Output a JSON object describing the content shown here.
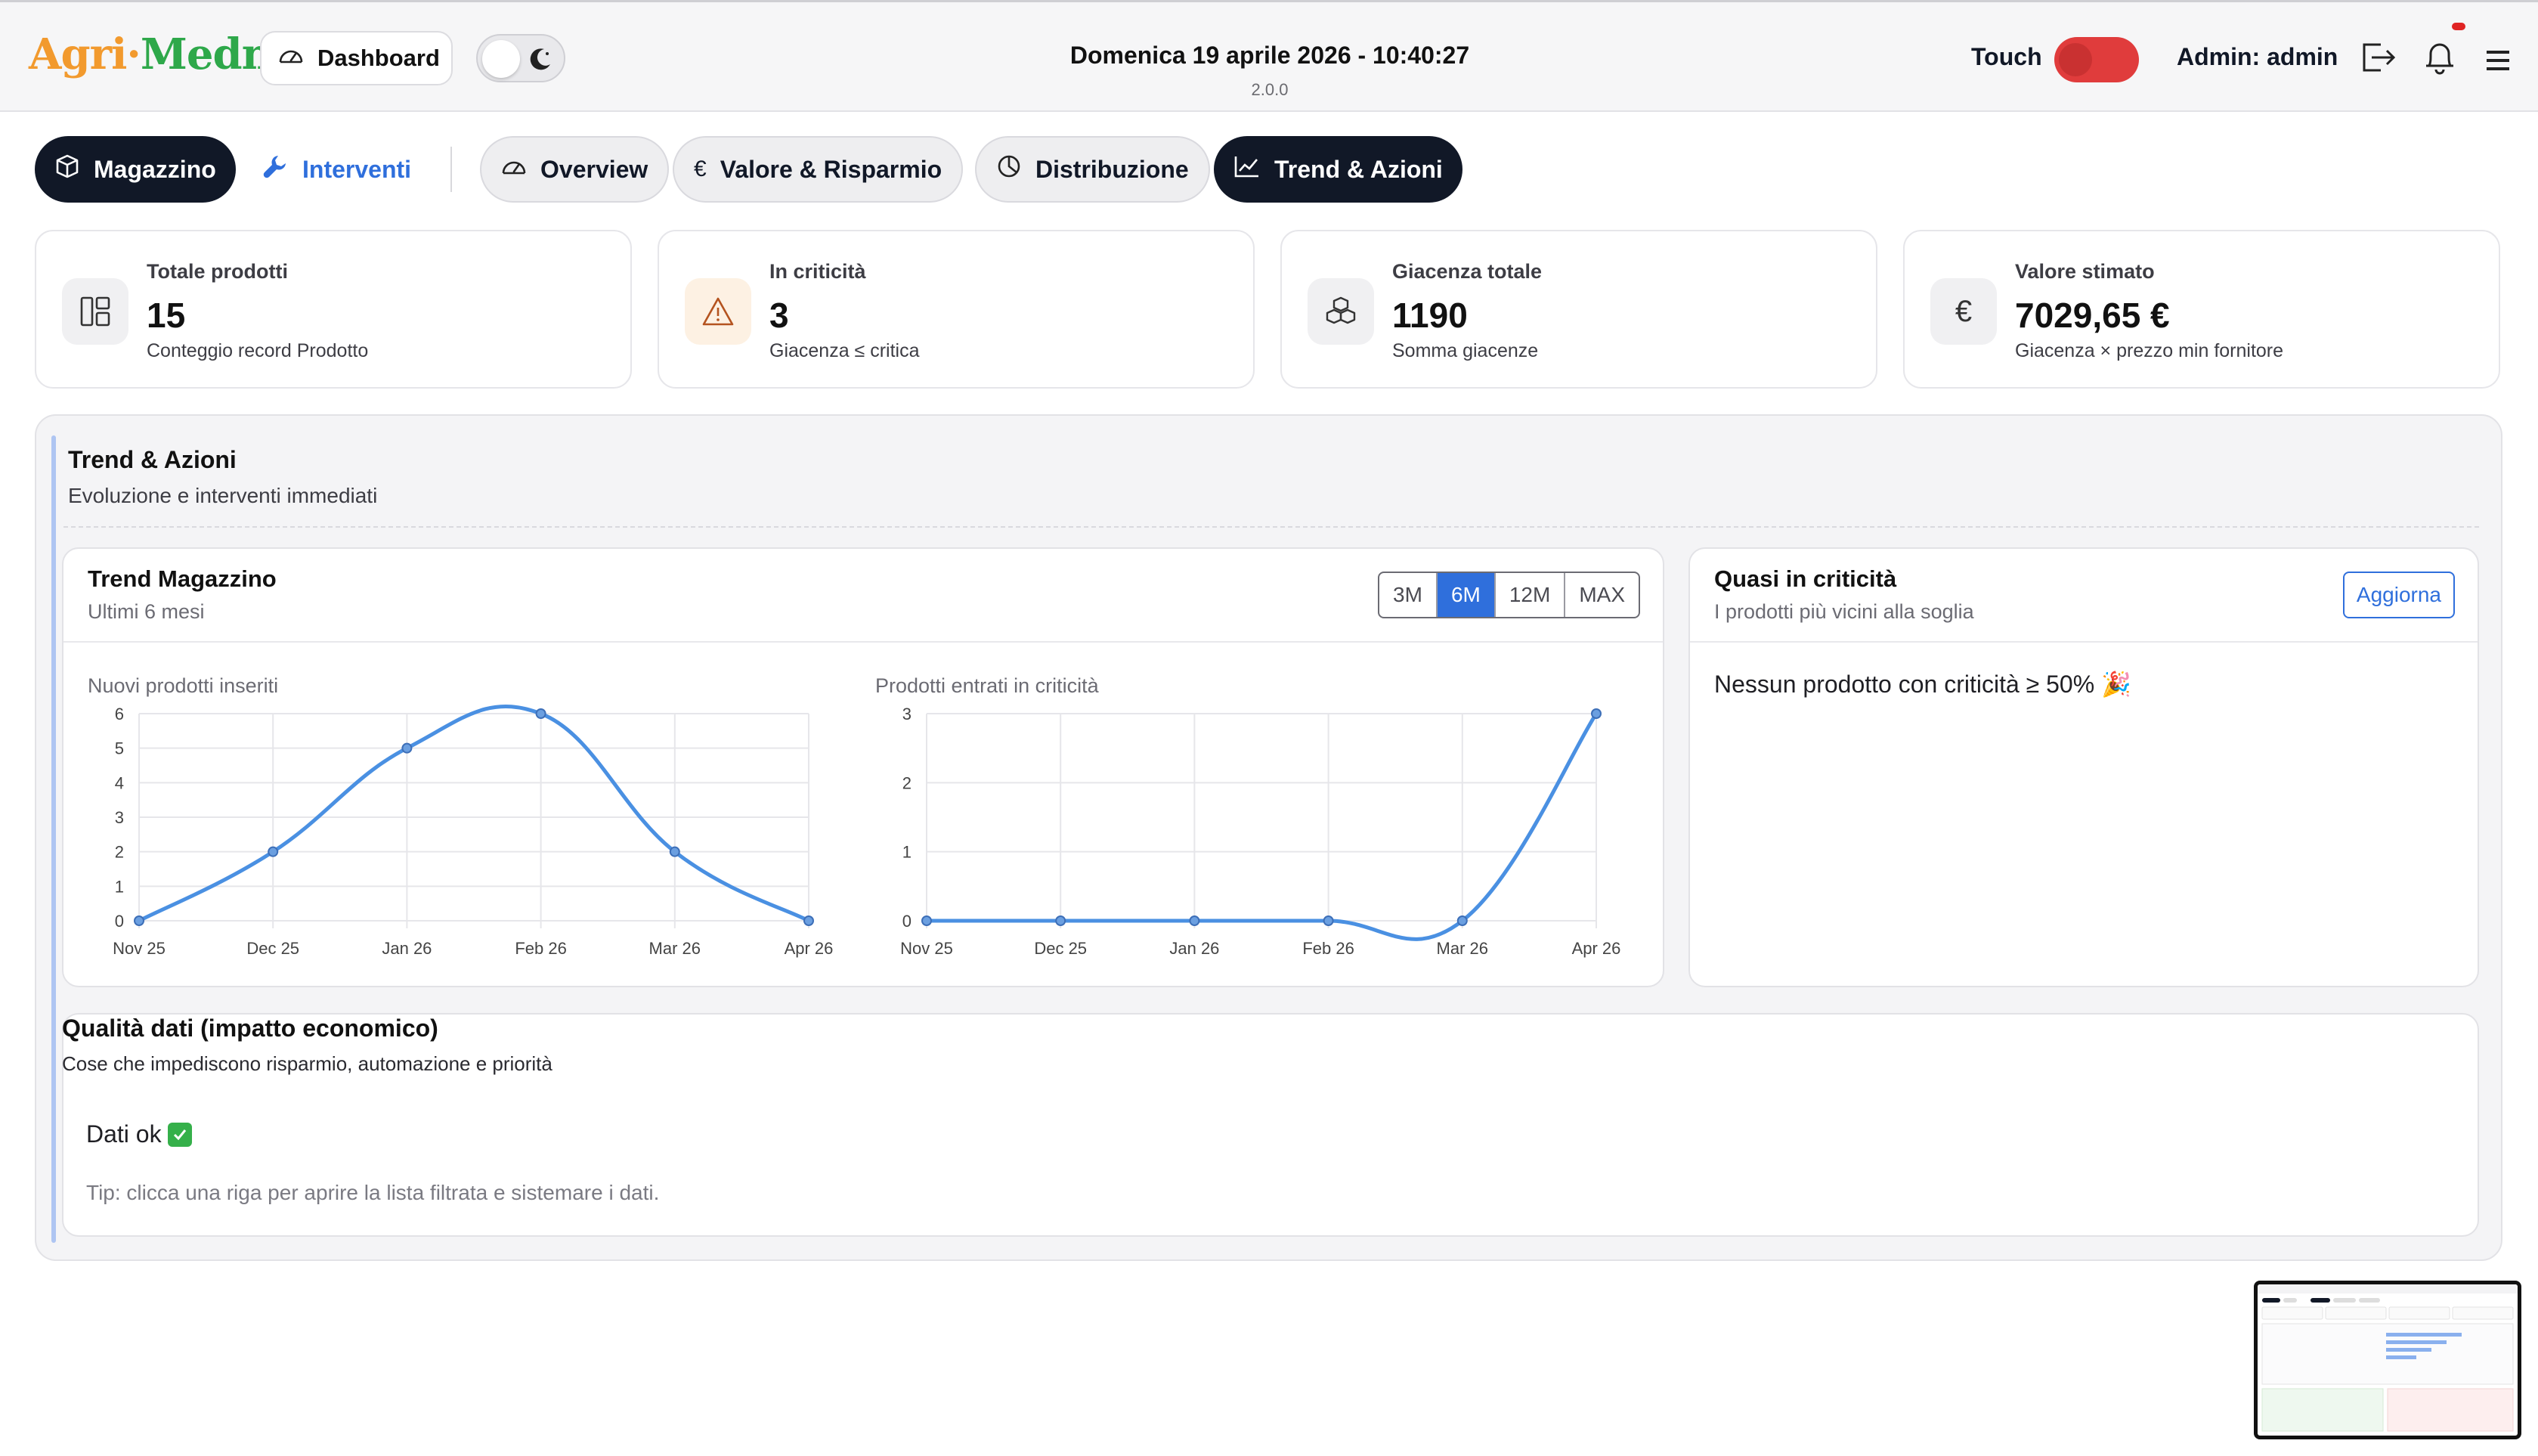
{
  "header": {
    "logo_part1": "Agri·",
    "logo_part2": "Medma",
    "dashboard_label": "Dashboard",
    "datetime": "Domenica 19 aprile 2026 - 10:40:27",
    "version": "2.0.0",
    "touch_label": "Touch",
    "admin_label": "Admin: admin",
    "colors": {
      "logo_orange": "#f29a2e",
      "logo_green": "#2ea84a",
      "touch_on": "#e03c3c"
    }
  },
  "tabs": {
    "magazzino": "Magazzino",
    "interventi": "Interventi",
    "overview": "Overview",
    "valore": "Valore & Risparmio",
    "distribuzione": "Distribuzione",
    "trend": "Trend & Azioni",
    "active": "Trend & Azioni"
  },
  "kpis": [
    {
      "label": "Totale prodotti",
      "value": "15",
      "sub": "Conteggio record Prodotto",
      "icon": "layout-icon"
    },
    {
      "label": "In criticità",
      "value": "3",
      "sub": "Giacenza ≤ critica",
      "icon": "warning-icon"
    },
    {
      "label": "Giacenza totale",
      "value": "1190",
      "sub": "Somma giacenze",
      "icon": "boxes-icon"
    },
    {
      "label": "Valore stimato",
      "value": "7029,65 €",
      "sub": "Giacenza × prezzo min fornitore",
      "icon": "euro-icon"
    }
  ],
  "section": {
    "title": "Trend & Azioni",
    "subtitle": "Evoluzione e interventi immediati"
  },
  "trend_card": {
    "title": "Trend Magazzino",
    "subtitle": "Ultimi 6 mesi",
    "ranges": [
      "3M",
      "6M",
      "12M",
      "MAX"
    ],
    "active_range": "6M"
  },
  "chart_data": [
    {
      "type": "line",
      "title": "Nuovi prodotti inseriti",
      "categories": [
        "Nov 25",
        "Dec 25",
        "Jan 26",
        "Feb 26",
        "Mar 26",
        "Apr 26"
      ],
      "values": [
        0,
        2,
        5,
        6,
        2,
        0
      ],
      "ylim": [
        0,
        6
      ],
      "yticks": [
        "0",
        "1",
        "2",
        "3",
        "4",
        "5",
        "6"
      ],
      "grid": true,
      "color": "#4a90e2"
    },
    {
      "type": "line",
      "title": "Prodotti entrati in criticità",
      "categories": [
        "Nov 25",
        "Dec 25",
        "Jan 26",
        "Feb 26",
        "Mar 26",
        "Apr 26"
      ],
      "values": [
        0,
        0,
        0,
        0,
        0,
        3
      ],
      "ylim": [
        0,
        3
      ],
      "yticks": [
        "0",
        "1",
        "2",
        "3"
      ],
      "grid": true,
      "color": "#4a90e2"
    }
  ],
  "near_critical": {
    "title": "Quasi in criticità",
    "subtitle": "I prodotti più vicini alla soglia",
    "refresh_label": "Aggiorna",
    "empty_message": "Nessun prodotto con criticità ≥ 50% 🎉"
  },
  "data_quality": {
    "title": "Qualità dati (impatto economico)",
    "subtitle": "Cose che impediscono risparmio, automazione e priorità",
    "ok_message": "Dati ok",
    "tip": "Tip: clicca una riga per aprire la lista filtrata e sistemare i dati."
  }
}
